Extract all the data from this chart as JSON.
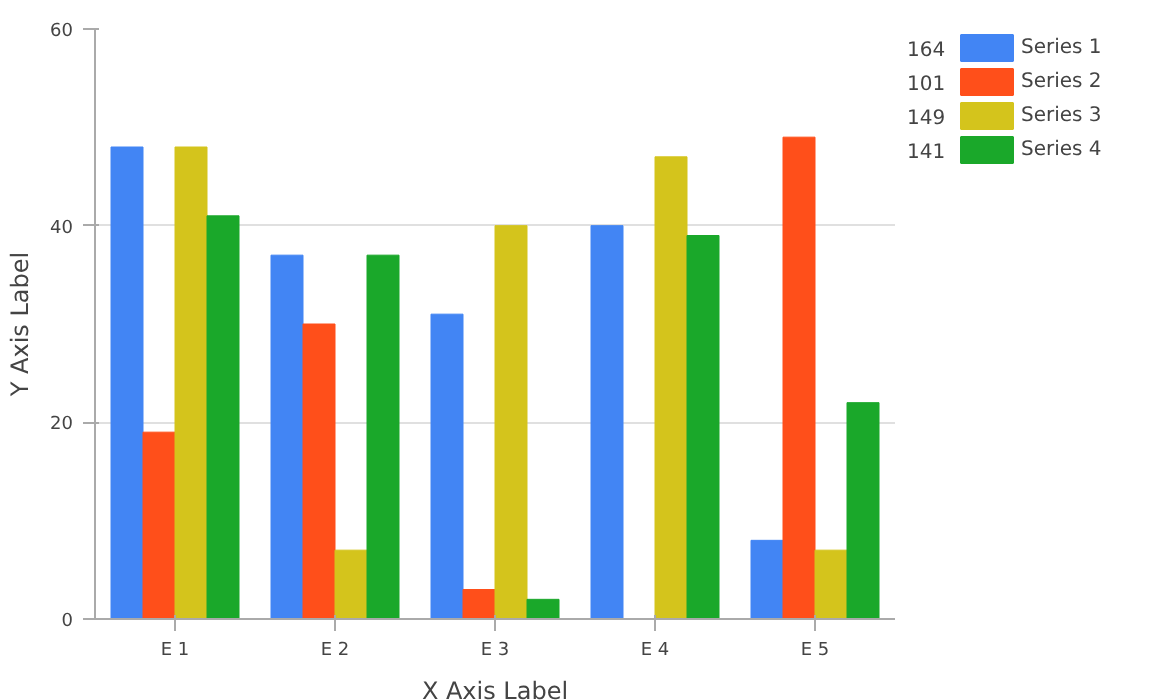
{
  "chart_data": {
    "type": "bar",
    "xlabel": "X Axis Label",
    "ylabel": "Y Axis Label",
    "categories": [
      "E 1",
      "E 2",
      "E 3",
      "E 4",
      "E 5"
    ],
    "series": [
      {
        "name": "Series 1",
        "color": "#4285f4",
        "values": [
          48,
          37,
          31,
          40,
          8
        ]
      },
      {
        "name": "Series 2",
        "color": "#ff4f1a",
        "values": [
          19,
          30,
          3,
          0,
          49
        ]
      },
      {
        "name": "Series 3",
        "color": "#d4c41c",
        "values": [
          48,
          7,
          40,
          47,
          7
        ]
      },
      {
        "name": "Series 4",
        "color": "#1aa82a",
        "values": [
          41,
          37,
          2,
          39,
          22
        ]
      }
    ],
    "annotations": [
      "164",
      "101",
      "149",
      "141"
    ],
    "ylim": [
      0,
      60
    ],
    "yticks": [
      0,
      20,
      40,
      60
    ],
    "grid": "y",
    "legend": "right"
  }
}
